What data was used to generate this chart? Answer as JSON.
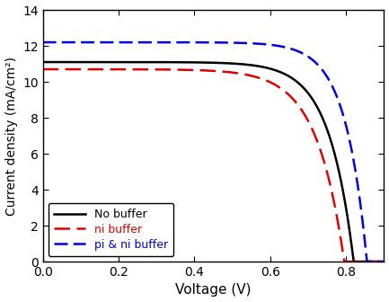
{
  "title": "",
  "xlabel": "Voltage (V)",
  "ylabel": "Current density (mA/cm²)",
  "xlim": [
    0.0,
    0.9
  ],
  "ylim": [
    0,
    14
  ],
  "xticks": [
    0.0,
    0.2,
    0.4,
    0.6,
    0.8
  ],
  "yticks": [
    0,
    2,
    4,
    6,
    8,
    10,
    12,
    14
  ],
  "curves": [
    {
      "label": "No buffer",
      "color": "#000000",
      "linestyle": "solid",
      "linewidth": 1.8,
      "Jsc": 11.1,
      "Voc": 0.82,
      "n": 2.5
    },
    {
      "label": "ni buffer",
      "color": "#dd0000",
      "linestyle": "dashed",
      "linewidth": 1.8,
      "Jsc": 10.7,
      "Voc": 0.795,
      "n": 2.8
    },
    {
      "label": "pi & ni buffer",
      "color": "#0000dd",
      "linestyle": "dashed",
      "linewidth": 1.8,
      "Jsc": 12.2,
      "Voc": 0.855,
      "n": 2.2
    }
  ],
  "legend_loc": "lower left",
  "legend_fontsize": 9,
  "background_color": "#ffffff",
  "figsize": [
    4.33,
    3.36
  ],
  "dpi": 100
}
